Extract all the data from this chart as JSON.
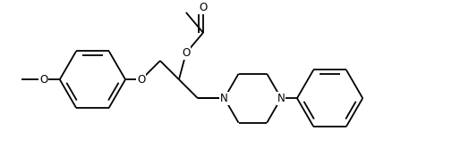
{
  "bg_color": "#ffffff",
  "line_color": "#000000",
  "lw": 1.3,
  "fs": 8.5,
  "fig_width": 5.06,
  "fig_height": 1.84,
  "dpi": 100,
  "xlim": [
    0,
    5.06
  ],
  "ylim": [
    0,
    1.84
  ]
}
